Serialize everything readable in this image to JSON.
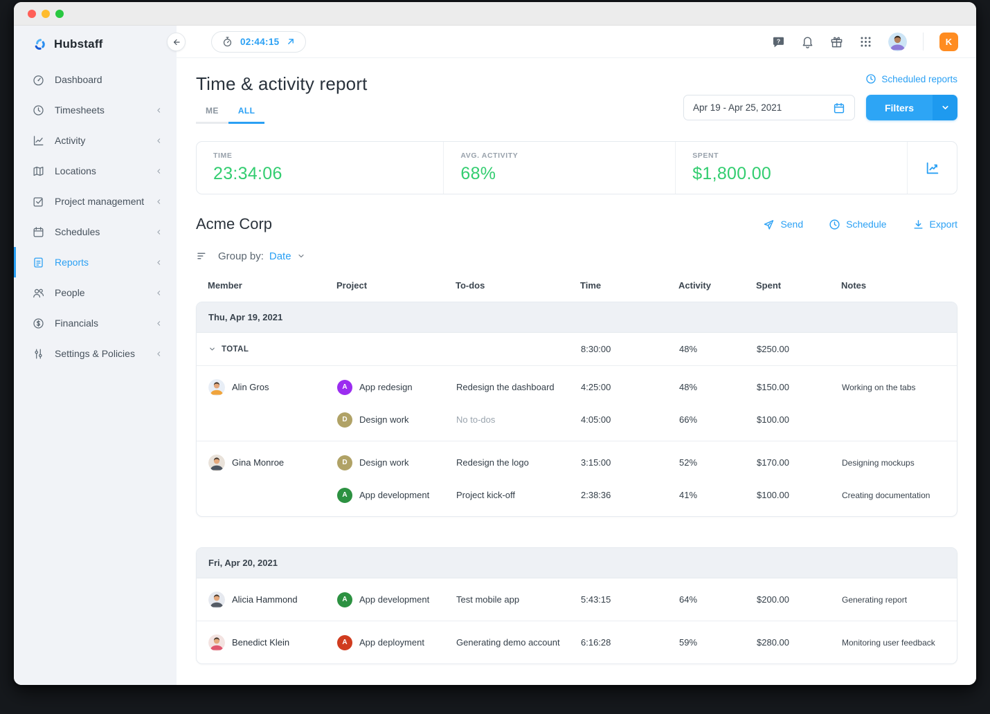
{
  "window": {
    "controls": [
      "close",
      "minimize",
      "zoom"
    ]
  },
  "sidebar": {
    "brand": "Hubstaff",
    "items": [
      {
        "label": "Dashboard",
        "icon": "dashboard-icon",
        "active": false,
        "has_submenu": false
      },
      {
        "label": "Timesheets",
        "icon": "timesheets-icon",
        "active": false,
        "has_submenu": true
      },
      {
        "label": "Activity",
        "icon": "activity-icon",
        "active": false,
        "has_submenu": true
      },
      {
        "label": "Locations",
        "icon": "locations-icon",
        "active": false,
        "has_submenu": true
      },
      {
        "label": "Project management",
        "icon": "project-management-icon",
        "active": false,
        "has_submenu": true
      },
      {
        "label": "Schedules",
        "icon": "schedules-icon",
        "active": false,
        "has_submenu": true
      },
      {
        "label": "Reports",
        "icon": "reports-icon",
        "active": true,
        "has_submenu": true
      },
      {
        "label": "People",
        "icon": "people-icon",
        "active": false,
        "has_submenu": true
      },
      {
        "label": "Financials",
        "icon": "financials-icon",
        "active": false,
        "has_submenu": true
      },
      {
        "label": "Settings & Policies",
        "icon": "settings-icon",
        "active": false,
        "has_submenu": true
      }
    ]
  },
  "topbar": {
    "timer_value": "02:44:15",
    "icons": [
      "help-icon",
      "bell-icon",
      "gift-icon",
      "apps-grid-icon"
    ],
    "org_initial": "K",
    "org_badge_color": "#ff8c21"
  },
  "header": {
    "title": "Time & activity report",
    "scheduled_reports_label": "Scheduled reports",
    "tabs": [
      {
        "label": "ME",
        "active": false
      },
      {
        "label": "ALL",
        "active": true
      }
    ],
    "date_range": "Apr 19 - Apr 25, 2021",
    "filters_label": "Filters"
  },
  "stats": {
    "items": [
      {
        "label": "TIME",
        "value": "23:34:06"
      },
      {
        "label": "AVG. ACTIVITY",
        "value": "68%"
      },
      {
        "label": "SPENT",
        "value": "$1,800.00"
      }
    ],
    "value_color": "#33cd70"
  },
  "report": {
    "org_name": "Acme Corp",
    "actions": [
      {
        "label": "Send",
        "icon": "send-icon"
      },
      {
        "label": "Schedule",
        "icon": "clock-icon"
      },
      {
        "label": "Export",
        "icon": "download-icon"
      }
    ],
    "group_by_label": "Group by:",
    "group_by_value": "Date",
    "columns": [
      "Member",
      "Project",
      "To-dos",
      "Time",
      "Activity",
      "Spent",
      "Notes"
    ],
    "groups": [
      {
        "date": "Thu, Apr 19, 2021",
        "total": {
          "label": "TOTAL",
          "time": "8:30:00",
          "activity": "48%",
          "spent": "$250.00"
        },
        "members": [
          {
            "name": "Alin Gros",
            "avatar_bg": "#e8eef6",
            "avatar_shirt": "#f0a43c",
            "entries": [
              {
                "project": "App redesign",
                "badge_letter": "A",
                "badge_color": "#9b2df0",
                "todo": "Redesign the dashboard",
                "todo_muted": false,
                "time": "4:25:00",
                "activity": "48%",
                "spent": "$150.00",
                "note": "Working on the tabs"
              },
              {
                "project": "Design work",
                "badge_letter": "D",
                "badge_color": "#b0a266",
                "todo": "No to-dos",
                "todo_muted": true,
                "time": "4:05:00",
                "activity": "66%",
                "spent": "$100.00",
                "note": ""
              }
            ]
          },
          {
            "name": "Gina Monroe",
            "avatar_bg": "#e9e2da",
            "avatar_shirt": "#4d5560",
            "entries": [
              {
                "project": "Design work",
                "badge_letter": "D",
                "badge_color": "#b0a266",
                "todo": "Redesign the logo",
                "todo_muted": false,
                "time": "3:15:00",
                "activity": "52%",
                "spent": "$170.00",
                "note": "Designing mockups"
              },
              {
                "project": "App development",
                "badge_letter": "A",
                "badge_color": "#2c9141",
                "todo": "Project kick-off",
                "todo_muted": false,
                "time": "2:38:36",
                "activity": "41%",
                "spent": "$100.00",
                "note": "Creating documentation"
              }
            ]
          }
        ]
      },
      {
        "date": "Fri, Apr 20, 2021",
        "total": null,
        "members": [
          {
            "name": "Alicia Hammond",
            "avatar_bg": "#e6e9ef",
            "avatar_shirt": "#555c66",
            "entries": [
              {
                "project": "App development",
                "badge_letter": "A",
                "badge_color": "#2c9141",
                "todo": "Test mobile app",
                "todo_muted": false,
                "time": "5:43:15",
                "activity": "64%",
                "spent": "$200.00",
                "note": "Generating report"
              }
            ]
          },
          {
            "name": "Benedict Klein",
            "avatar_bg": "#f3e3e1",
            "avatar_shirt": "#e0566e",
            "entries": [
              {
                "project": "App deployment",
                "badge_letter": "A",
                "badge_color": "#d03c1f",
                "todo": "Generating demo account",
                "todo_muted": false,
                "time": "6:16:28",
                "activity": "59%",
                "spent": "$280.00",
                "note": "Monitoring user feedback"
              }
            ]
          }
        ]
      }
    ]
  }
}
